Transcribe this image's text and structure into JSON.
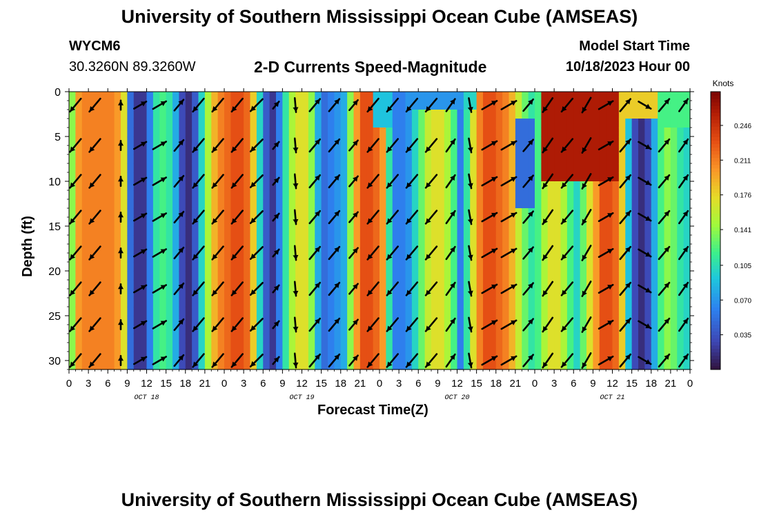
{
  "header": {
    "title": "University of Southern Mississippi Ocean Cube (AMSEAS)",
    "station": "WYCM6",
    "coordinates": "30.3260N  89.3260W",
    "subtitle": "2-D Currents Speed-Magnitude",
    "model_start_label": "Model Start Time",
    "model_start_value": "10/18/2023 Hour 00"
  },
  "footer": {
    "title": "University of Southern Mississippi Ocean Cube (AMSEAS)"
  },
  "chart_data": {
    "type": "heatmap",
    "title": "2-D Currents Speed-Magnitude",
    "xlabel": "Forecast Time(Z)",
    "ylabel": "Depth (ft)",
    "x_unit": "hours since 10/18/2023 00Z",
    "xlim": [
      0,
      96
    ],
    "ylim": [
      0,
      31
    ],
    "y_inverted": true,
    "x_tick_values": [
      0,
      3,
      6,
      9,
      12,
      15,
      18,
      21,
      24,
      27,
      30,
      33,
      36,
      39,
      42,
      45,
      48,
      51,
      54,
      57,
      60,
      63,
      66,
      69,
      72,
      75,
      78,
      81,
      84,
      87,
      90,
      93,
      96
    ],
    "x_tick_labels": [
      "0",
      "3",
      "6",
      "9",
      "12",
      "15",
      "18",
      "21",
      "0",
      "3",
      "6",
      "9",
      "12",
      "15",
      "18",
      "21",
      "0",
      "3",
      "6",
      "9",
      "12",
      "15",
      "18",
      "21",
      "0",
      "3",
      "6",
      "9",
      "12",
      "15",
      "18",
      "21",
      "0"
    ],
    "date_labels": [
      {
        "text": "OCT 18",
        "hour": 12
      },
      {
        "text": "OCT 19",
        "hour": 36
      },
      {
        "text": "OCT 20",
        "hour": 60
      },
      {
        "text": "OCT 21",
        "hour": 84
      }
    ],
    "y_ticks": [
      0,
      5,
      10,
      15,
      20,
      25,
      30
    ],
    "colorbar": {
      "label": "Knots",
      "range": [
        0.0,
        0.28
      ],
      "ticks": [
        0.035,
        0.07,
        0.105,
        0.141,
        0.176,
        0.211,
        0.246
      ],
      "tick_labels": [
        "0.035",
        "0.070",
        "0.105",
        "0.141",
        "0.176",
        "0.211",
        "0.246"
      ]
    },
    "speed_by_hour": [
      0.14,
      0.2,
      0.21,
      0.21,
      0.21,
      0.21,
      0.21,
      0.2,
      0.17,
      0.05,
      0.02,
      0.02,
      0.06,
      0.11,
      0.12,
      0.11,
      0.08,
      0.03,
      0.015,
      0.04,
      0.1,
      0.15,
      0.19,
      0.21,
      0.22,
      0.23,
      0.23,
      0.22,
      0.18,
      0.1,
      0.04,
      0.02,
      0.06,
      0.11,
      0.15,
      0.17,
      0.17,
      0.14,
      0.08,
      0.05,
      0.06,
      0.07,
      0.08,
      0.14,
      0.2,
      0.23,
      0.23,
      0.22,
      0.2,
      0.11,
      0.06,
      0.06,
      0.07,
      0.1,
      0.13,
      0.16,
      0.17,
      0.17,
      0.15,
      0.12,
      0.06,
      0.11,
      0.17,
      0.21,
      0.23,
      0.23,
      0.22,
      0.21,
      0.19,
      0.16,
      0.13,
      0.11,
      0.12,
      0.15,
      0.17,
      0.17,
      0.15,
      0.12,
      0.1,
      0.13,
      0.17,
      0.2,
      0.23,
      0.23,
      0.22,
      0.18,
      0.09,
      0.03,
      0.015,
      0.03,
      0.08,
      0.12,
      0.14,
      0.13,
      0.11,
      0.1,
      0.1
    ],
    "surface_overrides": [
      {
        "hours": [
          47,
          50
        ],
        "depths": [
          0,
          3.5
        ],
        "speed": 0.09
      },
      {
        "hours": [
          52,
          62
        ],
        "depths": [
          0,
          1.5
        ],
        "speed": 0.07
      },
      {
        "hours": [
          61,
          63
        ],
        "depths": [
          0,
          2
        ],
        "speed": 0.1
      },
      {
        "hours": [
          85,
          92
        ],
        "depths": [
          0,
          2.5
        ],
        "speed": 0.18
      },
      {
        "hours": [
          91,
          96
        ],
        "depths": [
          0,
          4
        ],
        "speed": 0.12
      },
      {
        "hours": [
          73,
          85
        ],
        "depths": [
          0,
          10
        ],
        "speed": 0.26
      },
      {
        "hours": [
          69,
          72
        ],
        "depths": [
          3,
          13
        ],
        "speed": 0.05
      }
    ],
    "arrow_times": [
      1,
      4,
      8,
      11,
      14,
      17,
      20,
      23,
      26,
      29,
      32,
      35,
      38,
      41,
      44,
      47,
      50,
      53,
      56,
      59,
      62,
      65,
      68,
      71,
      74,
      77,
      80,
      83,
      86,
      89,
      92,
      95
    ],
    "arrow_depths": [
      1.5,
      6,
      10,
      14,
      18,
      22,
      26,
      30
    ],
    "direction_by_time_deg": [
      220,
      220,
      0,
      60,
      60,
      40,
      220,
      220,
      220,
      225,
      40,
      175,
      40,
      40,
      40,
      220,
      220,
      220,
      220,
      35,
      170,
      60,
      60,
      40,
      215,
      220,
      210,
      60,
      40,
      120,
      40,
      35
    ],
    "arrow_length_by_time": [
      0.9,
      0.9,
      0.1,
      0.6,
      0.7,
      0.6,
      0.9,
      0.9,
      0.9,
      0.9,
      0.1,
      0.6,
      0.8,
      0.8,
      0.5,
      0.9,
      0.9,
      0.9,
      0.9,
      0.7,
      0.6,
      0.9,
      0.9,
      0.7,
      0.9,
      0.9,
      0.9,
      0.8,
      0.8,
      0.6,
      0.8,
      0.7
    ]
  }
}
